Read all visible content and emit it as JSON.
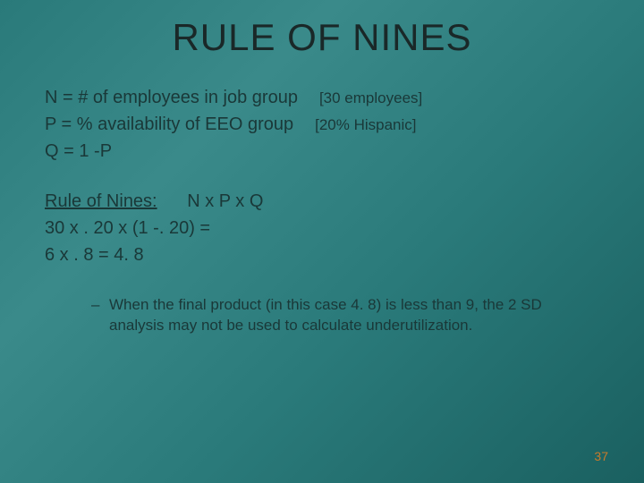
{
  "title": "RULE OF NINES",
  "definitions": {
    "n": {
      "text": "N = # of employees in job group",
      "note": "[30 employees]"
    },
    "p": {
      "text": "P = % availability of EEO group",
      "note": "[20% Hispanic]"
    },
    "q": {
      "text": "Q = 1 -P",
      "note": ""
    }
  },
  "formula": {
    "label": "Rule of Nines:",
    "expr": "N x P x Q",
    "line2": "30 x . 20 x (1 -. 20) =",
    "line3": "6 x . 8 = 4. 8"
  },
  "note": {
    "dash": "–",
    "text": "When the final product (in this case 4. 8) is less than 9, the 2 SD analysis may not be used to calculate underutilization."
  },
  "page_number": "37",
  "colors": {
    "bg_start": "#2a7a7a",
    "bg_end": "#1a6060",
    "text": "#1a3838",
    "page_num": "#c97a2a"
  },
  "typography": {
    "title_fontsize": 42,
    "body_fontsize": 20,
    "note_fontsize": 17,
    "pagenum_fontsize": 14
  }
}
